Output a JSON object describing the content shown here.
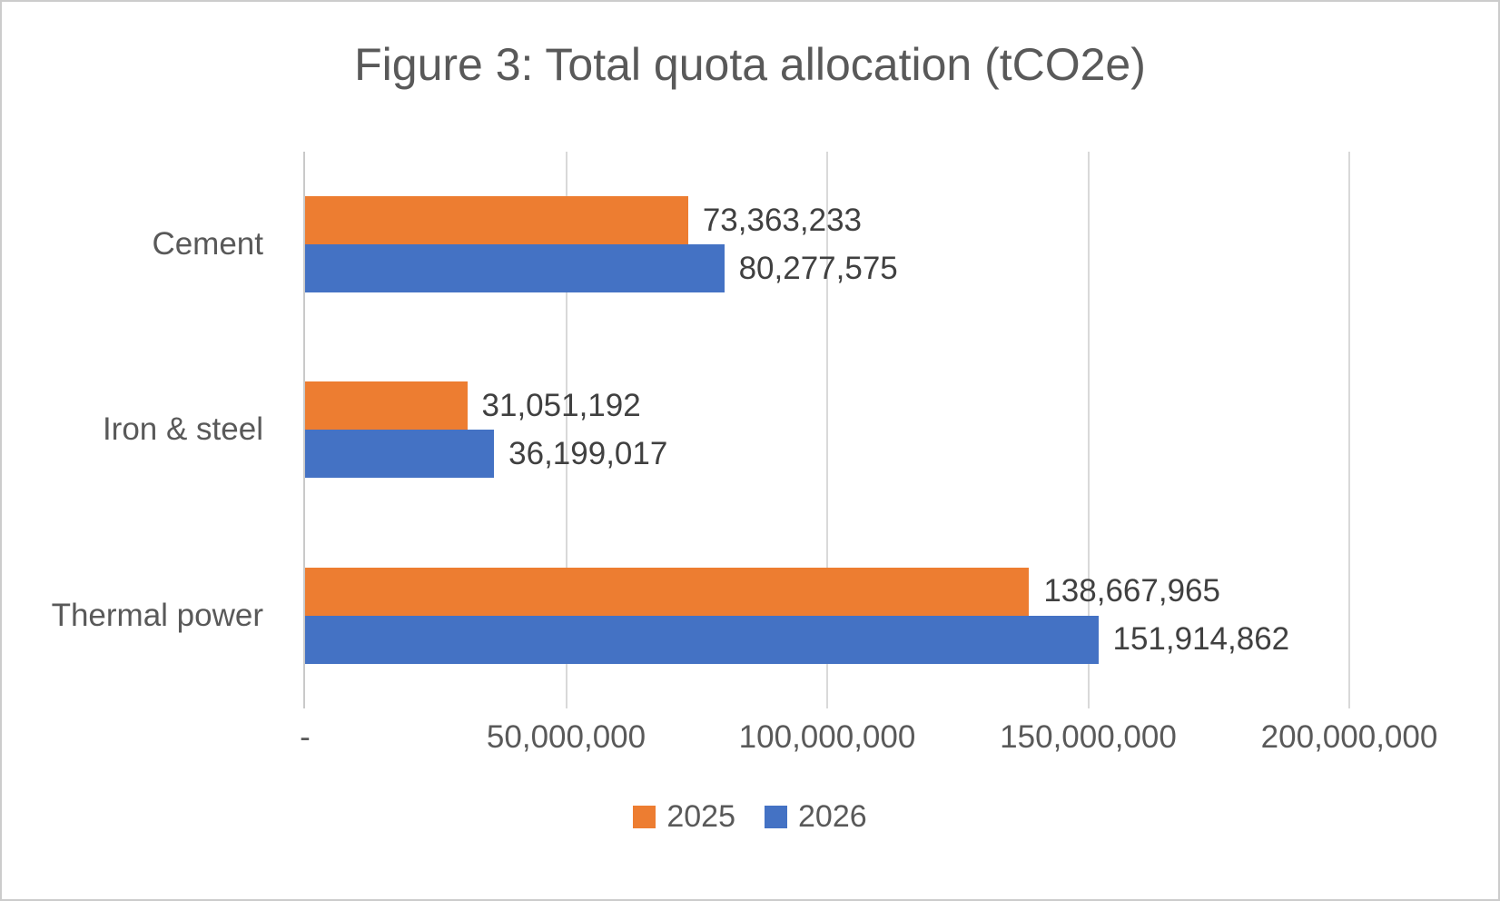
{
  "chart_data": {
    "type": "bar",
    "orientation": "horizontal",
    "title": "Figure 3: Total quota allocation (tCO2e)",
    "categories": [
      "Cement",
      "Iron & steel",
      "Thermal power"
    ],
    "series": [
      {
        "name": "2025",
        "color": "#ED7D31",
        "values": [
          73363233,
          31051192,
          138667965
        ],
        "labels": [
          "73,363,233",
          "31,051,192",
          "138,667,965"
        ]
      },
      {
        "name": "2026",
        "color": "#4472C4",
        "values": [
          80277575,
          36199017,
          151914862
        ],
        "labels": [
          "80,277,575",
          "36,199,017",
          "151,914,862"
        ]
      }
    ],
    "x_axis": {
      "min": 0,
      "max": 200000000,
      "tick_labels": [
        "-",
        "50,000,000",
        "100,000,000",
        "150,000,000",
        "200,000,000"
      ]
    },
    "legend": {
      "position": "bottom",
      "entries": [
        "2025",
        "2026"
      ]
    },
    "grid": true,
    "style": {
      "grid_color": "#D9D9D9",
      "axis_line_color": "#C9C9C9",
      "text_color": "#595959",
      "data_label_color": "#404040",
      "background": "#FFFFFF",
      "border_color": "#CCCCCC"
    }
  }
}
